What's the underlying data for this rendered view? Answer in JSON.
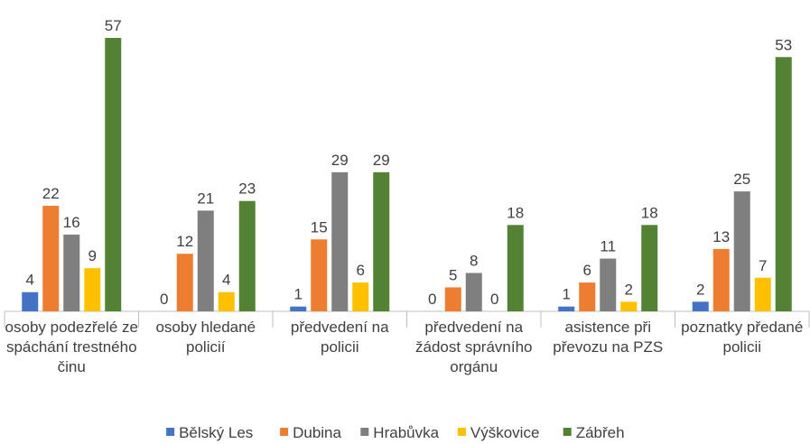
{
  "chart_data": {
    "type": "bar",
    "categories": [
      "osoby podezřelé ze spáchání trestného činu",
      "osoby hledané policií",
      "předvedení na policii",
      "předvedení na žádost správního orgánu",
      "asistence při převozu na PZS",
      "poznatky předané policii"
    ],
    "series": [
      {
        "name": "Bělský Les",
        "color": "#4472c4",
        "values": [
          4,
          0,
          1,
          0,
          1,
          2
        ]
      },
      {
        "name": "Dubina",
        "color": "#ed7d31",
        "values": [
          22,
          12,
          15,
          5,
          6,
          13
        ]
      },
      {
        "name": "Hrabůvka",
        "color": "#7f7f7f",
        "values": [
          16,
          21,
          29,
          8,
          11,
          25
        ]
      },
      {
        "name": "Výškovice",
        "color": "#ffc000",
        "values": [
          9,
          4,
          6,
          0,
          2,
          7
        ]
      },
      {
        "name": "Zábřeh",
        "color": "#548235",
        "values": [
          57,
          23,
          29,
          18,
          18,
          53
        ]
      }
    ],
    "legend": "bottom"
  }
}
